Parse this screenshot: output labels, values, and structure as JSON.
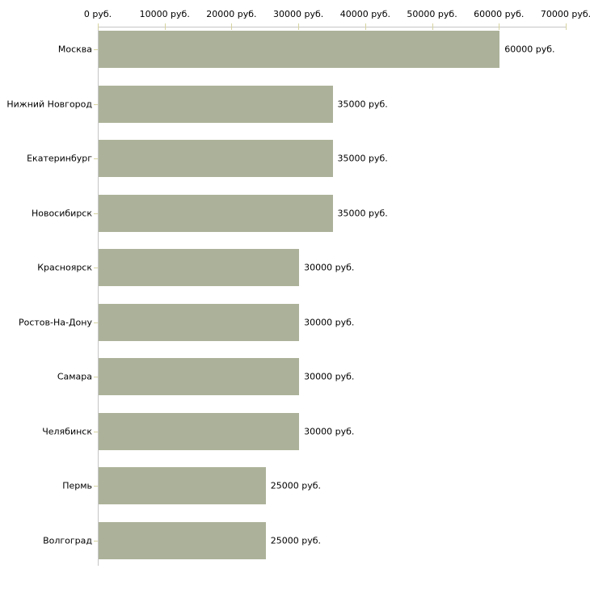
{
  "chart_data": {
    "type": "bar",
    "orientation": "horizontal",
    "categories": [
      "Москва",
      "Нижний Новгород",
      "Екатеринбург",
      "Новосибирск",
      "Красноярск",
      "Ростов-На-Дону",
      "Самара",
      "Челябинск",
      "Пермь",
      "Волгоград"
    ],
    "values": [
      60000,
      35000,
      35000,
      35000,
      30000,
      30000,
      30000,
      30000,
      25000,
      25000
    ],
    "bar_labels": [
      "60000 руб.",
      "35000 руб.",
      "35000 руб.",
      "35000 руб.",
      "30000 руб.",
      "30000 руб.",
      "30000 руб.",
      "30000 руб.",
      "25000 руб.",
      "25000 руб."
    ],
    "unit": "руб.",
    "x_axis": {
      "position": "top",
      "xlim": [
        0,
        70000
      ],
      "ticks": [
        0,
        10000,
        20000,
        30000,
        40000,
        50000,
        60000,
        70000
      ],
      "tick_labels": [
        "0 руб.",
        "10000 руб.",
        "20000 руб.",
        "30000 руб.",
        "40000 руб.",
        "50000 руб.",
        "60000 руб.",
        "70000 руб."
      ]
    },
    "grid": false,
    "legend": "none",
    "colors": {
      "bar": "#acb299",
      "axis_line": "#c5c5c5",
      "tick": "#d6d3a0",
      "text": "#000000",
      "background": "#ffffff"
    }
  }
}
